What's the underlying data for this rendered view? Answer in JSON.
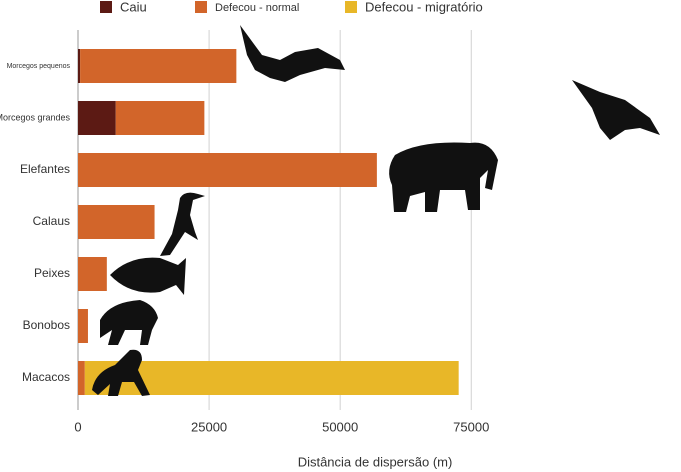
{
  "chart_data": {
    "type": "stacked-bar-horizontal",
    "x_label": "Distância de dispersão (m)",
    "categories": [
      "Morcegos pequenos",
      "Morcegos grandes",
      "Elefantes",
      "Calaus",
      "Peixes",
      "Bonobos",
      "Macacos"
    ],
    "series": [
      {
        "name": "Caiu",
        "color": "#5c1a14",
        "values": [
          400,
          7200,
          0,
          0,
          0,
          0,
          0
        ]
      },
      {
        "name": "Defecou - normal",
        "color": "#d2652a",
        "values": [
          29800,
          16900,
          57000,
          14600,
          5500,
          1900,
          1300
        ]
      },
      {
        "name": "Defecou - migratório",
        "color": "#e8b728",
        "values": [
          0,
          0,
          0,
          0,
          0,
          0,
          71300
        ]
      }
    ],
    "xlim": [
      0,
      115000
    ],
    "xticks": [
      0,
      25000,
      50000,
      75000
    ],
    "grid": true
  }
}
